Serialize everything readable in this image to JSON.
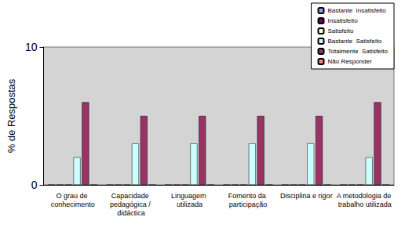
{
  "chart_data": {
    "type": "bar",
    "y_label": "% de Respostas",
    "categories": [
      "O grau de conhecimento",
      "Capacidade pedagógica / didáctica",
      "Linguagem utilizada",
      "Fomento da participação",
      "Disciplina e rigor",
      "A metodologia de trabalho utilizada"
    ],
    "series": [
      {
        "name": "Bastante  Insatisfeito",
        "color": "#9999ff",
        "values": [
          0,
          0,
          0,
          0,
          0,
          0
        ]
      },
      {
        "name": "Insatisfeito",
        "color": "#660066",
        "values": [
          0,
          0,
          0,
          0,
          0,
          0
        ]
      },
      {
        "name": "Satisfeito",
        "color": "#ffffcc",
        "values": [
          0,
          0,
          0,
          0,
          0,
          0
        ]
      },
      {
        "name": "Bastante  Satisfeito",
        "color": "#ccffff",
        "values": [
          2,
          3,
          3,
          3,
          3,
          2
        ]
      },
      {
        "name": "Totalmente  Satisfeito",
        "color": "#993366",
        "values": [
          6,
          5,
          5,
          5,
          5,
          6
        ]
      },
      {
        "name": "Não Responder",
        "color": "#ff8080",
        "values": [
          0,
          0,
          0,
          0,
          0,
          0
        ]
      }
    ],
    "ylim": [
      0,
      10
    ],
    "yticks": [
      0,
      10
    ],
    "grid": false,
    "legend": "upper right"
  }
}
